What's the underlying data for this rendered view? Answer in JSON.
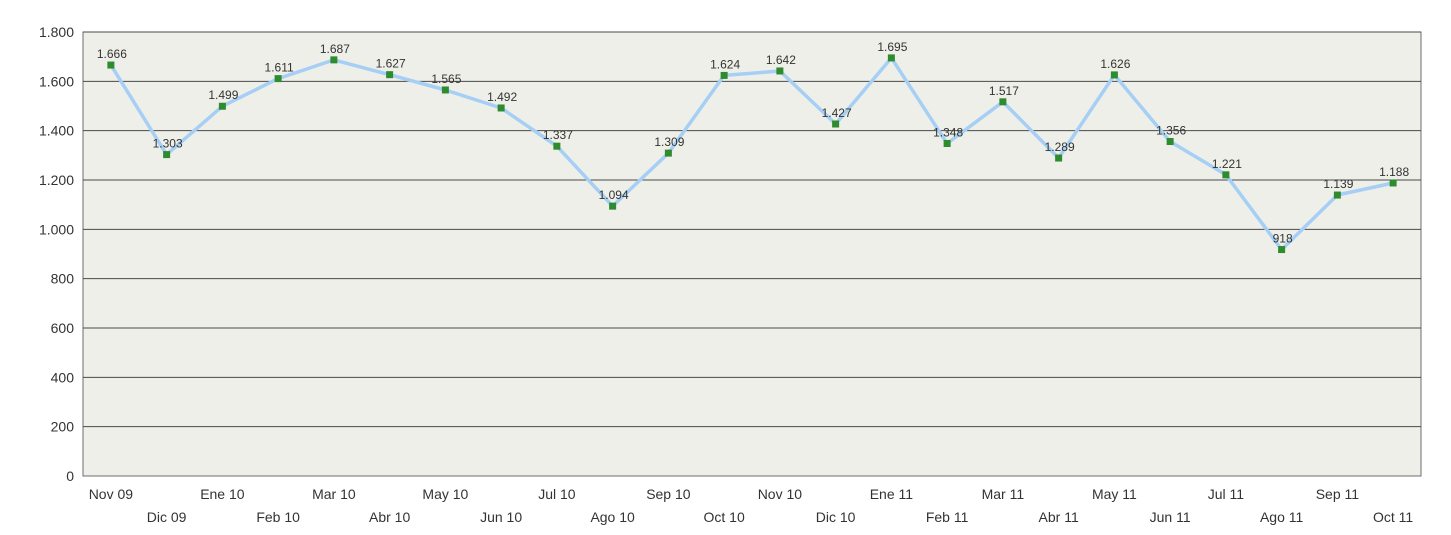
{
  "colors": {
    "plot_background": "#efefe9",
    "gridline": "#4a4a4a",
    "line": "#a6cff5",
    "marker": "#2e8b2e",
    "text": "#333333"
  },
  "chart_data": {
    "type": "line",
    "title": "",
    "xlabel": "",
    "ylabel": "",
    "ylim": [
      0,
      1800
    ],
    "yticks": [
      0,
      200,
      400,
      600,
      800,
      1000,
      1200,
      1400,
      1600,
      1800
    ],
    "ytick_labels": [
      "0",
      "200",
      "400",
      "600",
      "800",
      "1.000",
      "1.200",
      "1.400",
      "1.600",
      "1.800"
    ],
    "grid": true,
    "legend": "none",
    "categories": [
      "Nov 09",
      "Dic 09",
      "Ene 10",
      "Feb 10",
      "Mar 10",
      "Abr 10",
      "May 10",
      "Jun 10",
      "Jul 10",
      "Ago 10",
      "Sep 10",
      "Oct 10",
      "Nov 10",
      "Dic 10",
      "Ene 11",
      "Feb 11",
      "Mar 11",
      "Abr 11",
      "May 11",
      "Jun 11",
      "Jul 11",
      "Ago 11",
      "Sep 11",
      "Oct 11"
    ],
    "series": [
      {
        "values": [
          1666,
          1303,
          1499,
          1611,
          1687,
          1627,
          1565,
          1492,
          1337,
          1094,
          1309,
          1624,
          1642,
          1427,
          1695,
          1348,
          1517,
          1289,
          1626,
          1356,
          1221,
          918,
          1139,
          1188
        ],
        "data_labels": [
          "1.666",
          "1.303",
          "1.499",
          "1.611",
          "1.687",
          "1.627",
          "1.565",
          "1.492",
          "1.337",
          "1.094",
          "1.309",
          "1.624",
          "1.642",
          "1.427",
          "1.695",
          "1.348",
          "1.517",
          "1.289",
          "1.626",
          "1.356",
          "1.221",
          "918",
          "1.139",
          "1.188"
        ]
      }
    ]
  }
}
